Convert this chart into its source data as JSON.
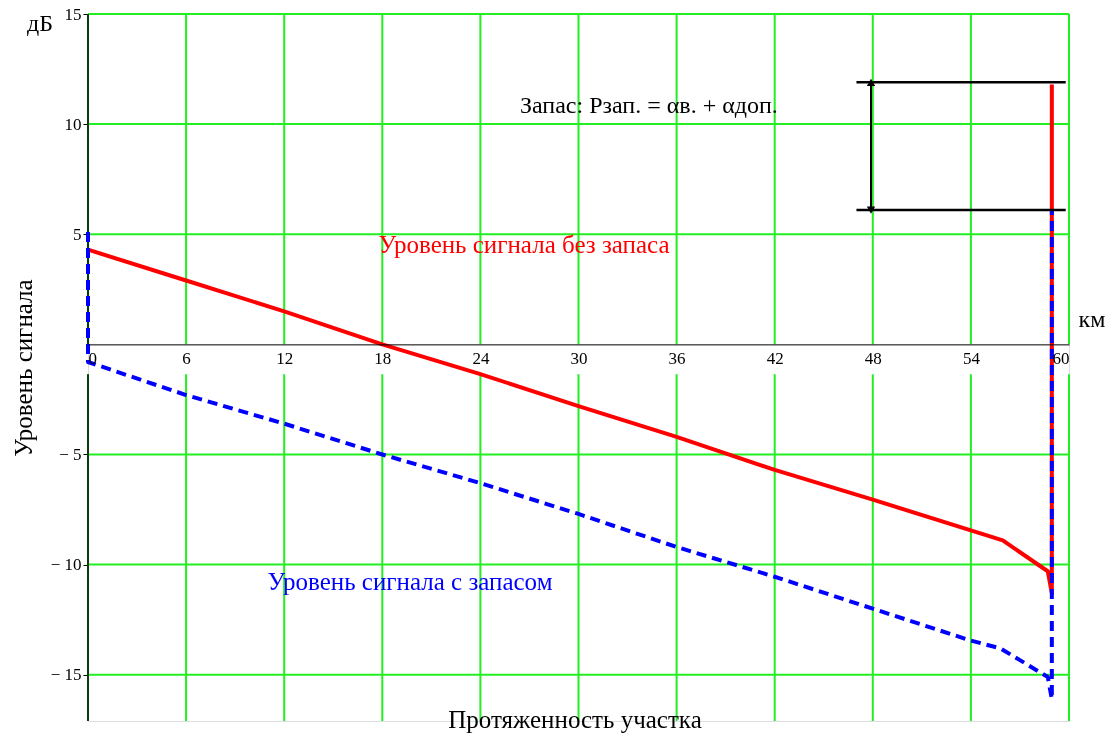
{
  "chart_data": {
    "type": "line",
    "xlabel": "Протяженность участка",
    "ylabel": "Уровень сигнала",
    "annotations": [
      "дБ",
      "км",
      "Запас: Pзап. = αв. + αдоп."
    ],
    "xlim": [
      0,
      60
    ],
    "ylim": [
      -17.1,
      15
    ],
    "xticks": [
      0,
      6,
      12,
      18,
      24,
      30,
      36,
      42,
      48,
      54,
      60
    ],
    "yticks": [
      {
        "value": -15,
        "label": "− 15"
      },
      {
        "value": -10,
        "label": "− 10"
      },
      {
        "value": -5,
        "label": "− 5"
      },
      5,
      10,
      15
    ],
    "grid": true,
    "series": [
      {
        "name": "Уровень сигнала без запаса",
        "color": "#ff0000",
        "line_style": "solid",
        "x": [
          0,
          6,
          12,
          18,
          24,
          30,
          36,
          42,
          48,
          55.95,
          58.7,
          58.95,
          58.95
        ],
        "values": [
          4.3,
          2.9,
          1.5,
          0,
          -1.35,
          -2.8,
          -4.2,
          -5.7,
          -7.05,
          -8.9,
          -10.3,
          -11.3,
          11.8
        ]
      },
      {
        "name": "Уровень сигнала с запасом",
        "color": "#0000ff",
        "line_style": "dashed",
        "x": [
          0,
          0,
          6,
          12,
          18,
          24,
          30,
          36,
          42,
          48,
          54,
          55.8,
          58.7,
          58.95,
          58.95
        ],
        "values": [
          5.1,
          -0.8,
          -2.3,
          -3.6,
          -5.0,
          -6.3,
          -7.7,
          -9.2,
          -10.55,
          -12.0,
          -13.45,
          -13.8,
          -15.1,
          -16.1,
          6.1
        ]
      },
      {
        "color": "#000000",
        "line_style": "solid",
        "x": [
          47.0,
          59.8
        ],
        "values": [
          11.9,
          11.9
        ]
      },
      {
        "color": "#000000",
        "line_style": "solid",
        "x": [
          47.0,
          59.8
        ],
        "values": [
          6.1,
          6.1
        ]
      }
    ]
  }
}
